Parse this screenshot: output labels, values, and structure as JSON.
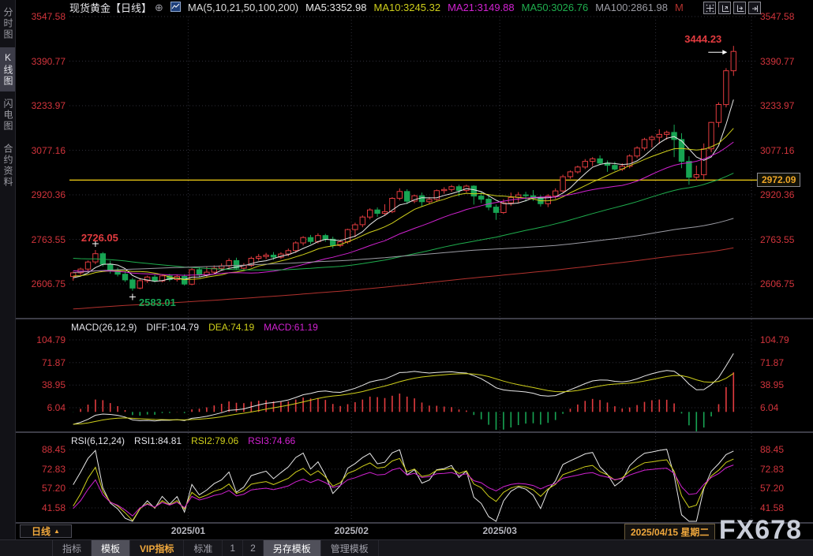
{
  "colors": {
    "up": "#e23b3f",
    "down": "#17a453",
    "ma5": "#e8e8e8",
    "ma10": "#cfcf1b",
    "ma21": "#d122d1",
    "ma50": "#1fae4e",
    "ma100": "#9c9ca4",
    "ma200": "#b2322e",
    "axis_label": "#d2343c",
    "cur_price": "#efa727",
    "hline": "#d9b913",
    "grid": "#2e2e38",
    "month_label": "#b6b6be",
    "accent_orange": "#f0a83c",
    "watermark": "#c9cdd8",
    "diff": "#e8e8e8",
    "dea": "#cfcf1b",
    "macd_hist_pos": "#e23b3f",
    "macd_hist_neg": "#17a453",
    "rsi1": "#e8e8e8",
    "rsi2": "#cfcf1b",
    "rsi3": "#d122d1"
  },
  "sidebar": {
    "items": [
      {
        "label": "分时图",
        "selected": false
      },
      {
        "label": "K线图",
        "selected": true
      },
      {
        "label": "闪电图",
        "selected": false
      },
      {
        "label": "合约资料",
        "selected": false
      }
    ]
  },
  "header": {
    "title": "现货黄金【日线】",
    "expand_icon": "⊕",
    "ma_settings": "MA(5,10,21,50,100,200)",
    "ma_values": [
      {
        "label": "MA5:3352.98"
      },
      {
        "label": "MA10:3245.32"
      },
      {
        "label": "MA21:3149.88"
      },
      {
        "label": "MA50:3026.76"
      },
      {
        "label": "MA100:2861.98"
      },
      {
        "label": "M"
      }
    ]
  },
  "main_chart": {
    "current_price": "2972.09"
  },
  "macd_panel": {
    "title_label": "MACD(26,12,9)",
    "diff_label": "DIFF:104.79",
    "dea_label": "DEA:74.19",
    "macd_label": "MACD:61.19"
  },
  "rsi_panel": {
    "title_label": "RSI(6,12,24)",
    "rsi1_label": "RSI1:84.81",
    "rsi2_label": "RSI2:79.06",
    "rsi3_label": "RSI3:74.66"
  },
  "time_axis": {
    "period_label": "日线",
    "period_arrow": "▲",
    "last_date_label": "2025/04/15 星期二"
  },
  "watermark": "FX678",
  "bottom_toolbar": {
    "tabs": [
      {
        "label": "指标",
        "style": "normal"
      },
      {
        "label": "模板",
        "style": "selected"
      },
      {
        "label": "VIP指标",
        "style": "vip"
      },
      {
        "label": "标准",
        "style": "normal"
      },
      {
        "label": "1",
        "style": "num"
      },
      {
        "label": "2",
        "style": "num"
      },
      {
        "label": "另存模板",
        "style": "selected"
      },
      {
        "label": "管理模板",
        "style": "normal"
      }
    ]
  },
  "chart_data": {
    "type": "candlestick",
    "title": "现货黄金 日线 (Spot Gold, daily)",
    "panels": [
      "price+MA(5,10,21,50,100,200)",
      "MACD(26,12,9)",
      "RSI(6,12,24)"
    ],
    "price_axis_ticks": [
      3547.58,
      3390.77,
      3233.97,
      3077.16,
      2920.36,
      2763.55,
      2606.75
    ],
    "macd_axis_ticks": [
      104.79,
      71.87,
      38.95,
      6.04
    ],
    "rsi_axis_ticks": [
      88.45,
      72.83,
      57.2,
      41.58
    ],
    "horizontal_line_price": 2972.09,
    "x_month_marks": [
      {
        "candle_index": 16,
        "label": "2025/01"
      },
      {
        "candle_index": 38,
        "label": "2025/02"
      },
      {
        "candle_index": 58,
        "label": "2025/03"
      },
      {
        "candle_index": 79,
        "label": ""
      }
    ],
    "annotations": [
      {
        "type": "swing-high",
        "candle_index": 3,
        "price": 2726.05,
        "label": "2726.05"
      },
      {
        "type": "swing-low",
        "candle_index": 8,
        "price": 2583.01,
        "label": "2583.01"
      },
      {
        "type": "last-high",
        "candle_index": 89,
        "price": 3444.23,
        "label": "3444.23"
      }
    ],
    "ma_periods": [
      5,
      10,
      21,
      50,
      100,
      200
    ],
    "indicator_readouts": {
      "MA5": 3352.98,
      "MA10": 3245.32,
      "MA21": 3149.88,
      "MA50": 3026.76,
      "MA100": 2861.98,
      "DIFF": 104.79,
      "DEA": 74.19,
      "MACD": 61.19,
      "RSI1": 84.81,
      "RSI2": 79.06,
      "RSI3": 74.66
    },
    "ohlc": [
      [
        2633,
        2650,
        2618,
        2646
      ],
      [
        2646,
        2664,
        2638,
        2659
      ],
      [
        2659,
        2689,
        2652,
        2684
      ],
      [
        2684,
        2726.05,
        2676,
        2713
      ],
      [
        2713,
        2719,
        2668,
        2676
      ],
      [
        2676,
        2688,
        2643,
        2652
      ],
      [
        2652,
        2664,
        2633,
        2641
      ],
      [
        2641,
        2652,
        2614,
        2621
      ],
      [
        2621,
        2628,
        2583.01,
        2592
      ],
      [
        2592,
        2628,
        2588,
        2618
      ],
      [
        2618,
        2636,
        2610,
        2631
      ],
      [
        2631,
        2640,
        2612,
        2617
      ],
      [
        2617,
        2639,
        2613,
        2635
      ],
      [
        2635,
        2642,
        2616,
        2622
      ],
      [
        2622,
        2640,
        2615,
        2633
      ],
      [
        2633,
        2641,
        2601,
        2606
      ],
      [
        2606,
        2662,
        2602,
        2657
      ],
      [
        2657,
        2665,
        2630,
        2638
      ],
      [
        2638,
        2667,
        2632,
        2648
      ],
      [
        2648,
        2672,
        2641,
        2662
      ],
      [
        2662,
        2679,
        2653,
        2670
      ],
      [
        2670,
        2697,
        2663,
        2689
      ],
      [
        2689,
        2699,
        2656,
        2662
      ],
      [
        2662,
        2680,
        2654,
        2672
      ],
      [
        2672,
        2703,
        2666,
        2697
      ],
      [
        2697,
        2712,
        2689,
        2703
      ],
      [
        2703,
        2716,
        2694,
        2708
      ],
      [
        2708,
        2719,
        2691,
        2701
      ],
      [
        2701,
        2718,
        2695,
        2712
      ],
      [
        2712,
        2731,
        2704,
        2724
      ],
      [
        2724,
        2757,
        2716,
        2751
      ],
      [
        2751,
        2775,
        2742,
        2770
      ],
      [
        2770,
        2779,
        2747,
        2756
      ],
      [
        2756,
        2785,
        2749,
        2777
      ],
      [
        2777,
        2783,
        2755,
        2764
      ],
      [
        2764,
        2773,
        2732,
        2742
      ],
      [
        2742,
        2763,
        2736,
        2755
      ],
      [
        2755,
        2801,
        2748,
        2798
      ],
      [
        2798,
        2822,
        2771,
        2815
      ],
      [
        2815,
        2848,
        2806,
        2842
      ],
      [
        2842,
        2873,
        2834,
        2867
      ],
      [
        2867,
        2876,
        2843,
        2855
      ],
      [
        2855,
        2887,
        2848,
        2861
      ],
      [
        2861,
        2912,
        2856,
        2908
      ],
      [
        2908,
        2943,
        2901,
        2932
      ],
      [
        2932,
        2940,
        2888,
        2898
      ],
      [
        2898,
        2921,
        2891,
        2917
      ],
      [
        2917,
        2928,
        2878,
        2896
      ],
      [
        2896,
        2913,
        2887,
        2904
      ],
      [
        2904,
        2939,
        2897,
        2935
      ],
      [
        2935,
        2947,
        2924,
        2939
      ],
      [
        2939,
        2955,
        2931,
        2949
      ],
      [
        2949,
        2956,
        2915,
        2936
      ],
      [
        2936,
        2956,
        2928,
        2951
      ],
      [
        2951,
        2954,
        2886,
        2916
      ],
      [
        2916,
        2931,
        2891,
        2905
      ],
      [
        2905,
        2921,
        2866,
        2877
      ],
      [
        2877,
        2886,
        2832,
        2858
      ],
      [
        2858,
        2905,
        2853,
        2892
      ],
      [
        2892,
        2928,
        2881,
        2911
      ],
      [
        2911,
        2930,
        2893,
        2920
      ],
      [
        2920,
        2931,
        2897,
        2917
      ],
      [
        2917,
        2937,
        2899,
        2909
      ],
      [
        2909,
        2919,
        2879,
        2889
      ],
      [
        2889,
        2923,
        2877,
        2916
      ],
      [
        2916,
        2943,
        2906,
        2934
      ],
      [
        2934,
        2991,
        2929,
        2984
      ],
      [
        2984,
        3006,
        2977,
        3001
      ],
      [
        3001,
        3023,
        2995,
        3018
      ],
      [
        3018,
        3046,
        3011,
        3038
      ],
      [
        3038,
        3053,
        3021,
        3047
      ],
      [
        3047,
        3059,
        3025,
        3032
      ],
      [
        3032,
        3041,
        3001,
        3024
      ],
      [
        3024,
        3037,
        3005,
        3011
      ],
      [
        3011,
        3031,
        3004,
        3021
      ],
      [
        3021,
        3063,
        3014,
        3057
      ],
      [
        3057,
        3091,
        3049,
        3085
      ],
      [
        3085,
        3121,
        3077,
        3115
      ],
      [
        3115,
        3129,
        3087,
        3123
      ],
      [
        3123,
        3151,
        3099,
        3133
      ],
      [
        3133,
        3146,
        3114,
        3140
      ],
      [
        3140,
        3167,
        3053,
        3115
      ],
      [
        3115,
        3137,
        3014,
        3038
      ],
      [
        3038,
        3056,
        2956,
        2982
      ],
      [
        2982,
        3023,
        2971,
        2991
      ],
      [
        2991,
        3101,
        2974,
        3082
      ],
      [
        3082,
        3177,
        3070,
        3175
      ],
      [
        3175,
        3246,
        3158,
        3238
      ],
      [
        3238,
        3366,
        3228,
        3357
      ],
      [
        3357,
        3444.23,
        3339,
        3425
      ]
    ]
  }
}
